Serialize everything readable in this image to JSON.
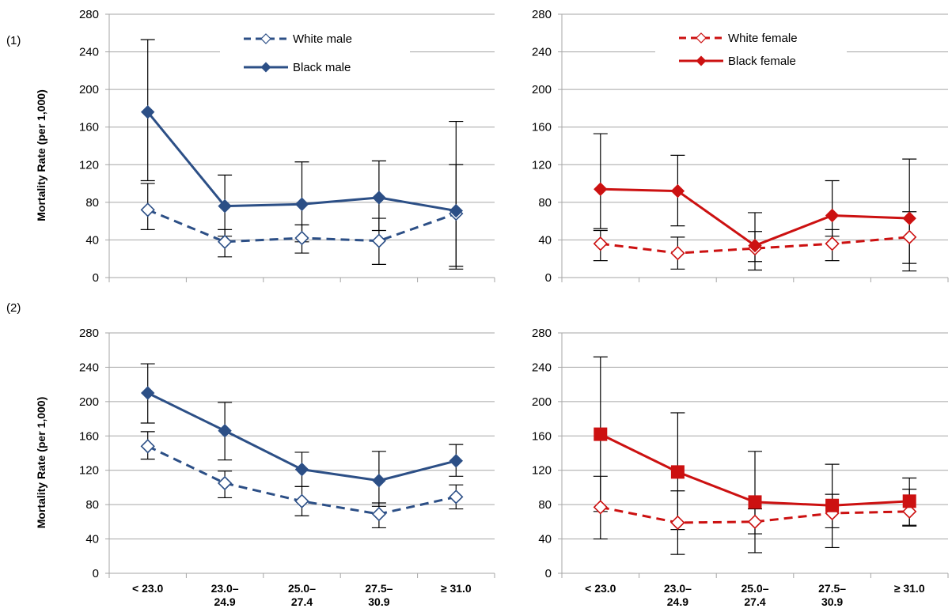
{
  "row_labels": [
    "(1)",
    "(2)"
  ],
  "colors": {
    "male": "#2c4f86",
    "female": "#cc1111",
    "grid": "#a6a6a6",
    "errorbar": "#000000"
  },
  "chart_data": [
    {
      "type": "line",
      "row": 1,
      "col": 1,
      "ylabel": "Mortality Rate (per 1,000)",
      "ylim": [
        0,
        280
      ],
      "yticks": [
        0,
        40,
        80,
        120,
        160,
        200,
        240,
        280
      ],
      "categories": [
        "< 23.0",
        "23.0–24.9",
        "25.0–27.4",
        "27.5–30.9",
        "≥ 31.0"
      ],
      "legend": "top-center",
      "series": [
        {
          "name": "White male",
          "style": "dashed",
          "marker": "open-diamond",
          "color": "#2c4f86",
          "values": [
            72,
            38,
            42,
            39,
            68
          ],
          "err_low": [
            51,
            22,
            26,
            14,
            9
          ],
          "err_high": [
            100,
            51,
            56,
            63,
            120
          ]
        },
        {
          "name": "Black male",
          "style": "solid",
          "marker": "filled-diamond",
          "color": "#2c4f86",
          "values": [
            176,
            76,
            78,
            85,
            71
          ],
          "err_low": [
            103,
            44,
            38,
            50,
            12
          ],
          "err_high": [
            253,
            109,
            123,
            124,
            166
          ]
        }
      ]
    },
    {
      "type": "line",
      "row": 1,
      "col": 2,
      "ylabel": "",
      "ylim": [
        0,
        280
      ],
      "yticks": [
        0,
        40,
        80,
        120,
        160,
        200,
        240,
        280
      ],
      "categories": [
        "< 23.0",
        "23.0–24.9",
        "25.0–27.4",
        "27.5–30.9",
        "≥ 31.0"
      ],
      "legend": "top-center",
      "series": [
        {
          "name": "White female",
          "style": "dashed",
          "marker": "open-diamond",
          "color": "#cc1111",
          "values": [
            36,
            26,
            31,
            36,
            43
          ],
          "err_low": [
            18,
            9,
            17,
            18,
            15
          ],
          "err_high": [
            50,
            43,
            49,
            51,
            70
          ]
        },
        {
          "name": "Black female",
          "style": "solid",
          "marker": "filled-diamond",
          "color": "#cc1111",
          "values": [
            94,
            92,
            34,
            66,
            63
          ],
          "err_low": [
            52,
            55,
            8,
            44,
            7
          ],
          "err_high": [
            153,
            130,
            69,
            103,
            126
          ]
        }
      ]
    },
    {
      "type": "line",
      "row": 2,
      "col": 1,
      "ylabel": "Mortality Rate (per 1,000)",
      "ylim": [
        0,
        280
      ],
      "yticks": [
        0,
        40,
        80,
        120,
        160,
        200,
        240,
        280
      ],
      "categories": [
        "< 23.0",
        "23.0–24.9",
        "25.0–27.4",
        "27.5–30.9",
        "≥ 31.0"
      ],
      "series": [
        {
          "name": "White male",
          "style": "dashed",
          "marker": "open-diamond",
          "color": "#2c4f86",
          "values": [
            148,
            105,
            84,
            69,
            89
          ],
          "err_low": [
            133,
            88,
            67,
            53,
            75
          ],
          "err_high": [
            165,
            119,
            101,
            82,
            103
          ]
        },
        {
          "name": "Black male",
          "style": "solid",
          "marker": "filled-diamond",
          "color": "#2c4f86",
          "values": [
            210,
            166,
            121,
            108,
            131
          ],
          "err_low": [
            175,
            132,
            101,
            78,
            113
          ],
          "err_high": [
            244,
            199,
            141,
            142,
            150
          ]
        }
      ]
    },
    {
      "type": "line",
      "row": 2,
      "col": 2,
      "ylabel": "",
      "ylim": [
        0,
        280
      ],
      "yticks": [
        0,
        40,
        80,
        120,
        160,
        200,
        240,
        280
      ],
      "categories": [
        "< 23.0",
        "23.0–24.9",
        "25.0–27.4",
        "27.5–30.9",
        "≥ 31.0"
      ],
      "series": [
        {
          "name": "White female",
          "style": "dashed",
          "marker": "open-diamond",
          "color": "#cc1111",
          "values": [
            77,
            59,
            60,
            70,
            72
          ],
          "err_low": [
            72,
            51,
            46,
            53,
            56
          ],
          "err_high": [
            113,
            96,
            75,
            92,
            98
          ]
        },
        {
          "name": "Black female",
          "style": "solid",
          "marker": "filled-square",
          "color": "#cc1111",
          "values": [
            162,
            118,
            83,
            79,
            84
          ],
          "err_low": [
            40,
            22,
            24,
            30,
            55
          ],
          "err_high": [
            252,
            187,
            142,
            127,
            111
          ]
        }
      ]
    }
  ]
}
